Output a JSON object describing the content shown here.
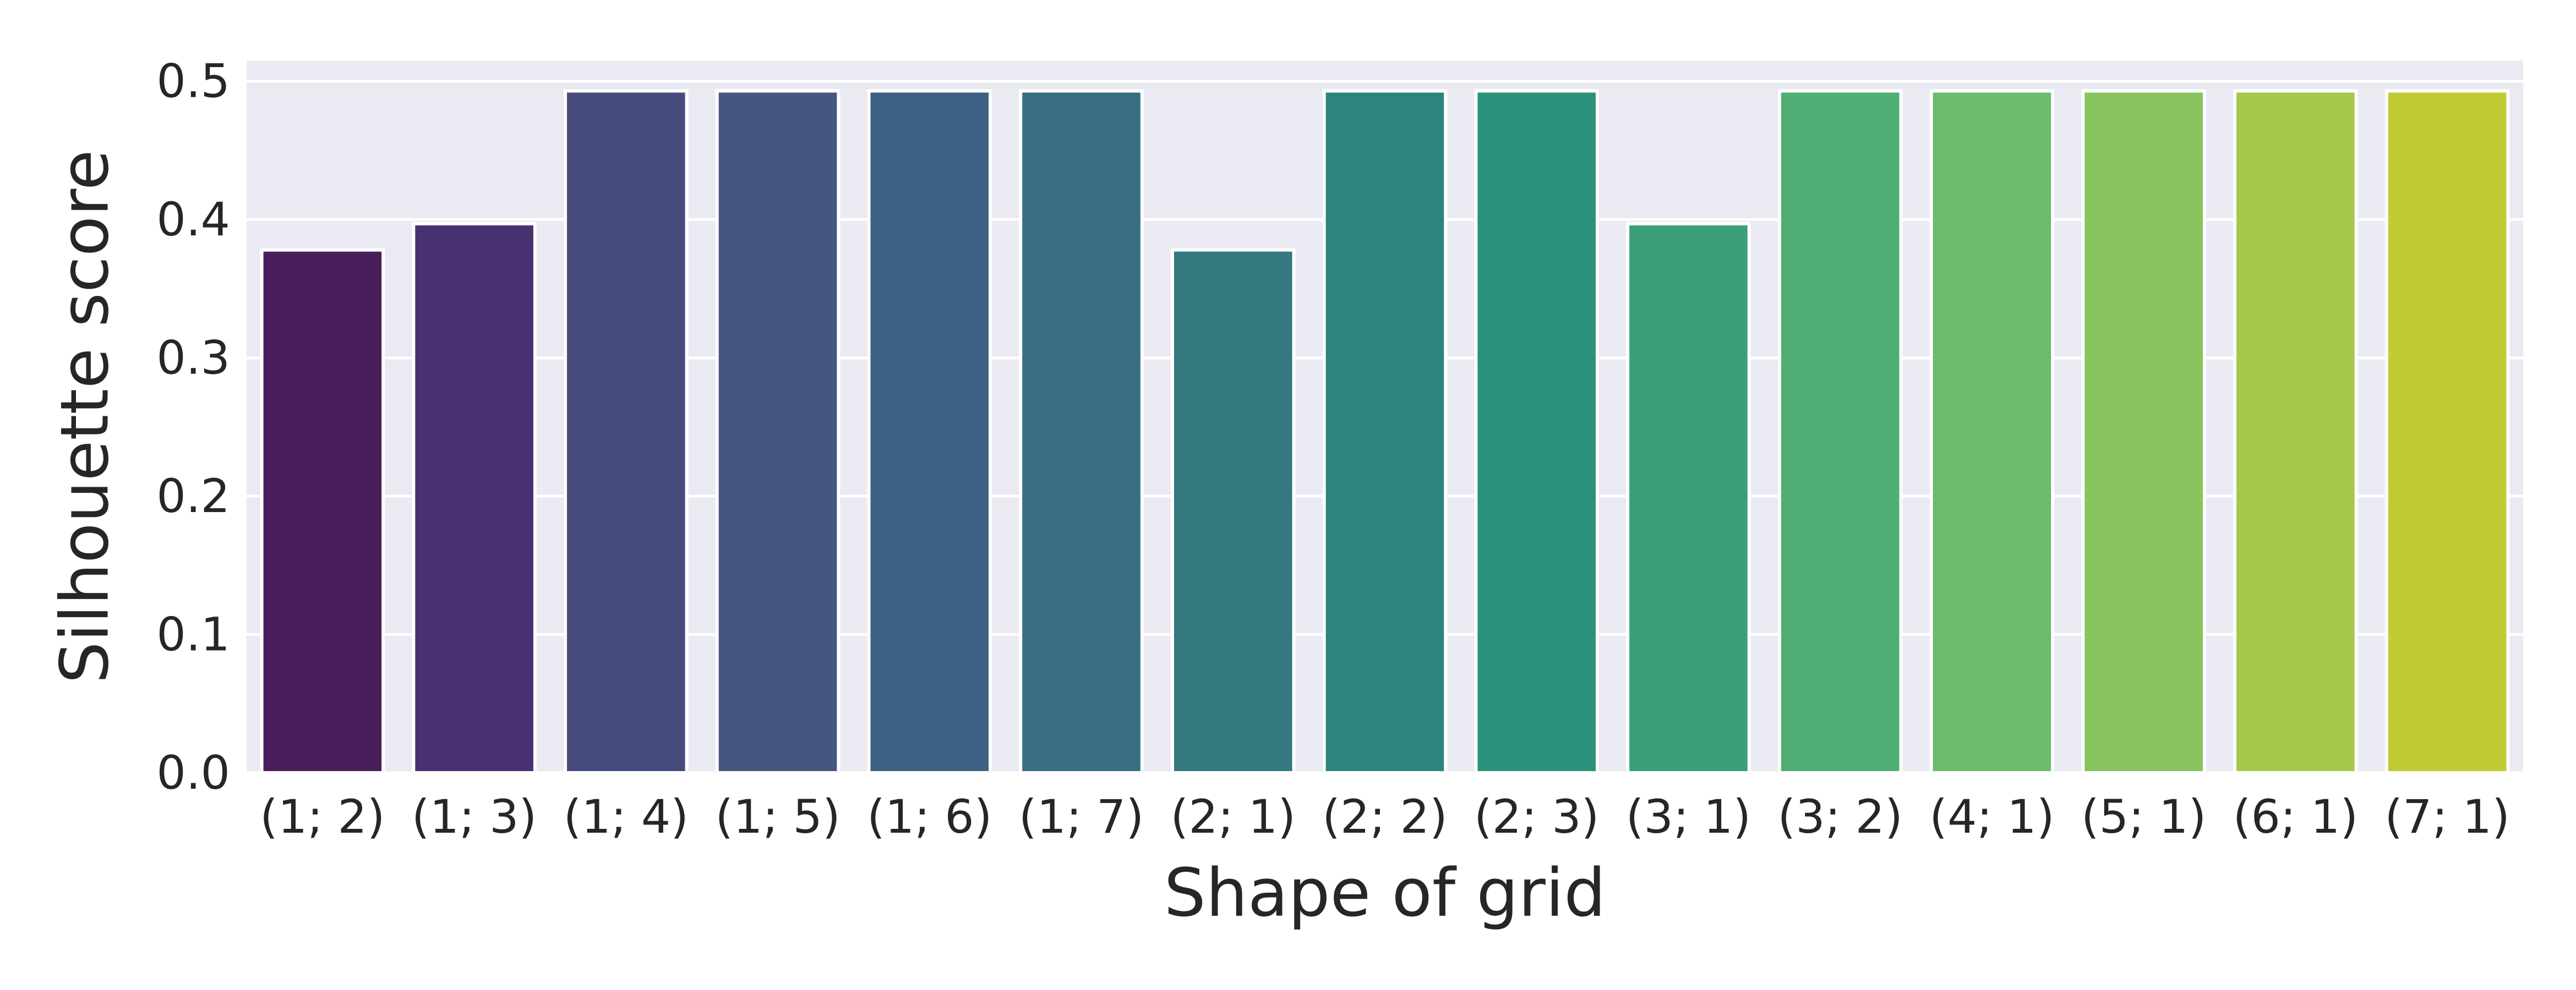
{
  "chart_data": {
    "type": "bar",
    "xlabel": "Shape of grid",
    "ylabel": "Silhouette score",
    "categories": [
      "(1; 2)",
      "(1; 3)",
      "(1; 4)",
      "(1; 5)",
      "(1; 6)",
      "(1; 7)",
      "(2; 1)",
      "(2; 2)",
      "(2; 3)",
      "(3; 1)",
      "(3; 2)",
      "(4; 1)",
      "(5; 1)",
      "(6; 1)",
      "(7; 1)"
    ],
    "values": [
      0.378,
      0.397,
      0.493,
      0.493,
      0.493,
      0.493,
      0.378,
      0.493,
      0.493,
      0.397,
      0.493,
      0.493,
      0.493,
      0.493,
      0.493
    ],
    "colors": [
      "#481f5b",
      "#473170",
      "#474b7c",
      "#43577f",
      "#3d6182",
      "#386e80",
      "#33797f",
      "#2d847c",
      "#2c917b",
      "#3a9f78",
      "#4fae74",
      "#6bbb6a",
      "#88c45e",
      "#a5c74b",
      "#c1ca33"
    ],
    "ylim": [
      0,
      0.515
    ],
    "yticks": [
      "0.0",
      "0.1",
      "0.2",
      "0.3",
      "0.4",
      "0.5"
    ],
    "grid": true,
    "plot_background": "#eaeaf2",
    "grid_color": "#ffffff"
  }
}
